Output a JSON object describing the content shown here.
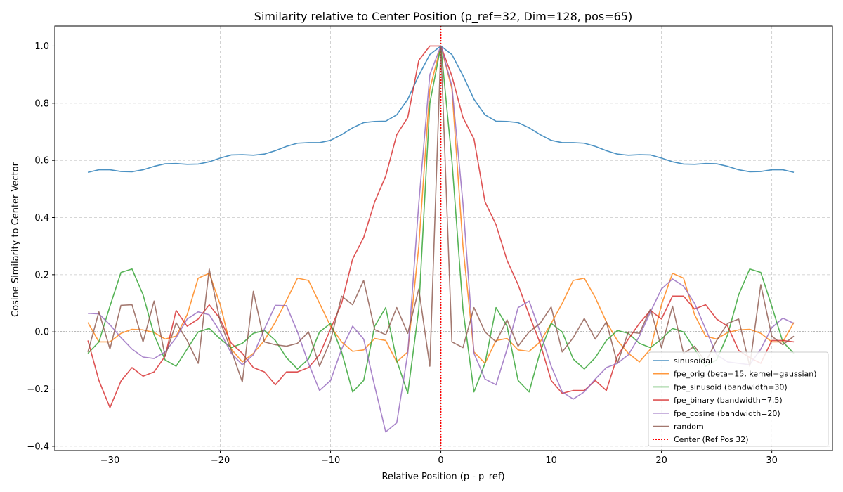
{
  "chart_data": {
    "type": "line",
    "title": "Similarity relative to Center Position (p_ref=32, Dim=128, pos=65)",
    "xlabel": "Relative Position (p - p_ref)",
    "ylabel": "Cosine Similarity to Center Vector",
    "xlim": [
      -35,
      35.5
    ],
    "ylim": [
      -0.415,
      1.07
    ],
    "xticks": [
      -30,
      -20,
      -10,
      0,
      10,
      20,
      30
    ],
    "yticks": [
      -0.4,
      -0.2,
      0.0,
      0.2,
      0.4,
      0.6,
      0.8,
      1.0
    ],
    "xtick_labels": [
      "−30",
      "−20",
      "−10",
      "0",
      "10",
      "20",
      "30"
    ],
    "ytick_labels": [
      "−0.4",
      "−0.2",
      "0.0",
      "0.2",
      "0.4",
      "0.6",
      "0.8",
      "1.0"
    ],
    "grid": true,
    "legend_position": "lower-right",
    "x": [
      -32,
      -31,
      -30,
      -29,
      -28,
      -27,
      -26,
      -25,
      -24,
      -23,
      -22,
      -21,
      -20,
      -19,
      -18,
      -17,
      -16,
      -15,
      -14,
      -13,
      -12,
      -11,
      -10,
      -9,
      -8,
      -7,
      -6,
      -5,
      -4,
      -3,
      -2,
      -1,
      0,
      1,
      2,
      3,
      4,
      5,
      6,
      7,
      8,
      9,
      10,
      11,
      12,
      13,
      14,
      15,
      16,
      17,
      18,
      19,
      20,
      21,
      22,
      23,
      24,
      25,
      26,
      27,
      28,
      29,
      30,
      31,
      32
    ],
    "series": [
      {
        "name": "sinusoidal",
        "color": "#1f77b4",
        "values": [
          0.558,
          0.567,
          0.567,
          0.561,
          0.56,
          0.567,
          0.579,
          0.588,
          0.589,
          0.586,
          0.587,
          0.595,
          0.608,
          0.619,
          0.62,
          0.618,
          0.622,
          0.634,
          0.649,
          0.66,
          0.662,
          0.662,
          0.67,
          0.69,
          0.714,
          0.732,
          0.736,
          0.737,
          0.759,
          0.814,
          0.897,
          0.97,
          1.0,
          0.97,
          0.897,
          0.814,
          0.759,
          0.737,
          0.736,
          0.732,
          0.714,
          0.69,
          0.67,
          0.662,
          0.662,
          0.66,
          0.649,
          0.634,
          0.622,
          0.618,
          0.62,
          0.619,
          0.608,
          0.595,
          0.587,
          0.586,
          0.589,
          0.588,
          0.579,
          0.567,
          0.56,
          0.561,
          0.567,
          0.567,
          0.558
        ]
      },
      {
        "name": "fpe_orig (beta=15, kernel=gaussian)",
        "color": "#ff7f0e",
        "values": [
          0.033,
          -0.035,
          -0.035,
          -0.005,
          0.009,
          0.007,
          -0.002,
          -0.025,
          -0.015,
          0.06,
          0.188,
          0.205,
          0.095,
          -0.06,
          -0.105,
          -0.075,
          -0.03,
          0.035,
          0.11,
          0.188,
          0.18,
          0.1,
          0.02,
          -0.035,
          -0.068,
          -0.063,
          -0.023,
          -0.03,
          -0.105,
          -0.07,
          0.3,
          0.85,
          1.0,
          0.85,
          0.3,
          -0.07,
          -0.11,
          -0.03,
          -0.023,
          -0.063,
          -0.068,
          -0.035,
          0.03,
          0.1,
          0.18,
          0.188,
          0.12,
          0.035,
          -0.03,
          -0.075,
          -0.105,
          -0.06,
          0.095,
          0.205,
          0.188,
          0.06,
          -0.015,
          -0.025,
          -0.002,
          0.007,
          0.009,
          -0.005,
          -0.035,
          -0.035,
          0.033
        ]
      },
      {
        "name": "fpe_sinusoid (bandwidth=30)",
        "color": "#2ca02c",
        "values": [
          -0.075,
          -0.035,
          0.09,
          0.208,
          0.22,
          0.13,
          -0.01,
          -0.098,
          -0.12,
          -0.06,
          0.0,
          0.012,
          -0.025,
          -0.055,
          -0.04,
          -0.005,
          0.005,
          -0.03,
          -0.09,
          -0.13,
          -0.095,
          0.0,
          0.03,
          -0.07,
          -0.21,
          -0.17,
          0.02,
          0.085,
          -0.1,
          -0.215,
          0.08,
          0.8,
          1.0,
          0.6,
          0.08,
          -0.21,
          -0.11,
          0.085,
          0.02,
          -0.17,
          -0.21,
          -0.07,
          0.03,
          0.0,
          -0.095,
          -0.13,
          -0.09,
          -0.03,
          0.005,
          -0.005,
          -0.04,
          -0.055,
          -0.025,
          0.012,
          0.0,
          -0.06,
          -0.12,
          -0.098,
          -0.01,
          0.13,
          0.22,
          0.208,
          0.09,
          -0.035,
          -0.075
        ]
      },
      {
        "name": "fpe_binary (bandwidth=7.5)",
        "color": "#d62728",
        "values": [
          -0.03,
          -0.17,
          -0.265,
          -0.172,
          -0.125,
          -0.155,
          -0.14,
          -0.085,
          0.075,
          0.02,
          0.045,
          0.095,
          0.045,
          -0.04,
          -0.075,
          -0.125,
          -0.14,
          -0.185,
          -0.14,
          -0.14,
          -0.125,
          -0.08,
          0.01,
          0.1,
          0.255,
          0.33,
          0.455,
          0.545,
          0.69,
          0.75,
          0.95,
          1.0,
          1.0,
          0.895,
          0.75,
          0.675,
          0.455,
          0.375,
          0.25,
          0.165,
          0.06,
          -0.04,
          -0.17,
          -0.215,
          -0.205,
          -0.205,
          -0.17,
          -0.205,
          -0.085,
          -0.025,
          0.03,
          0.075,
          0.045,
          0.125,
          0.125,
          0.08,
          0.095,
          0.045,
          0.02,
          -0.065,
          -0.09,
          -0.11,
          -0.03,
          -0.03,
          -0.035
        ]
      },
      {
        "name": "fpe_cosine (bandwidth=20)",
        "color": "#9467bd",
        "values": [
          0.065,
          0.063,
          0.025,
          -0.02,
          -0.06,
          -0.088,
          -0.093,
          -0.07,
          -0.02,
          0.045,
          0.07,
          0.06,
          0.0,
          -0.075,
          -0.115,
          -0.08,
          0.01,
          0.093,
          0.092,
          0.0,
          -0.11,
          -0.205,
          -0.17,
          -0.06,
          0.02,
          -0.025,
          -0.19,
          -0.35,
          -0.318,
          -0.075,
          0.45,
          0.9,
          1.0,
          0.86,
          0.45,
          -0.075,
          -0.165,
          -0.185,
          -0.06,
          0.085,
          0.108,
          0.0,
          -0.12,
          -0.21,
          -0.235,
          -0.21,
          -0.165,
          -0.125,
          -0.11,
          -0.08,
          -0.015,
          0.07,
          0.15,
          0.185,
          0.16,
          0.1,
          0.01,
          -0.08,
          -0.105,
          -0.11,
          -0.115,
          -0.06,
          0.015,
          0.048,
          0.03
        ]
      },
      {
        "name": "random",
        "color": "#8c564b",
        "values": [
          -0.07,
          0.07,
          -0.06,
          0.093,
          0.095,
          -0.035,
          0.108,
          -0.085,
          0.032,
          -0.03,
          -0.11,
          0.22,
          0.035,
          -0.065,
          -0.175,
          0.142,
          -0.035,
          -0.045,
          -0.05,
          -0.04,
          0.0,
          -0.12,
          -0.03,
          0.125,
          0.095,
          0.18,
          0.008,
          -0.01,
          0.085,
          -0.005,
          0.15,
          -0.12,
          1.0,
          -0.035,
          -0.055,
          0.085,
          0.0,
          -0.035,
          0.042,
          -0.05,
          0.0,
          0.03,
          0.087,
          -0.07,
          -0.02,
          0.047,
          -0.025,
          0.035,
          -0.11,
          0.0,
          -0.005,
          0.08,
          -0.055,
          0.09,
          -0.075,
          -0.05,
          -0.105,
          -0.03,
          0.03,
          0.045,
          -0.12,
          0.165,
          -0.015,
          -0.045,
          -0.015
        ]
      }
    ],
    "annotations": [
      {
        "type": "vline",
        "x": 0,
        "label": "Center (Ref Pos 32)",
        "color": "#ff0000",
        "style": "dotted"
      },
      {
        "type": "hline",
        "y": 0,
        "color": "#000000",
        "style": "dotted"
      }
    ]
  }
}
